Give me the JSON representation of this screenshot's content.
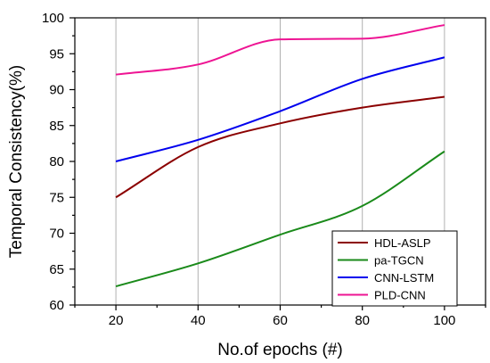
{
  "chart_data": {
    "type": "line",
    "title": "",
    "xlabel": "No.of epochs (#)",
    "ylabel": "Temporal Consistency(%)",
    "xlim": [
      10,
      110
    ],
    "ylim": [
      60,
      100
    ],
    "x_ticks": [
      20,
      40,
      60,
      80,
      100
    ],
    "y_ticks": [
      60,
      65,
      70,
      75,
      80,
      85,
      90,
      95,
      100
    ],
    "grid": "vertical",
    "legend_position": "bottom-right",
    "series": [
      {
        "name": "HDL-ASLP",
        "color": "#8B0000",
        "x": [
          20,
          40,
          60,
          80,
          100
        ],
        "values": [
          75.0,
          82.0,
          85.3,
          87.5,
          89.0
        ]
      },
      {
        "name": "pa-TGCN",
        "color": "#1a8a1a",
        "x": [
          20,
          40,
          60,
          80,
          100
        ],
        "values": [
          62.6,
          65.8,
          69.8,
          73.8,
          81.4
        ]
      },
      {
        "name": "CNN-LSTM",
        "color": "#0000ee",
        "x": [
          20,
          40,
          60,
          80,
          100
        ],
        "values": [
          80.0,
          83.0,
          87.0,
          91.5,
          94.5
        ]
      },
      {
        "name": "PLD-CNN",
        "color": "#ee1493",
        "x": [
          20,
          40,
          60,
          80,
          100
        ],
        "values": [
          92.1,
          93.5,
          97.0,
          97.1,
          99.0
        ]
      }
    ]
  }
}
